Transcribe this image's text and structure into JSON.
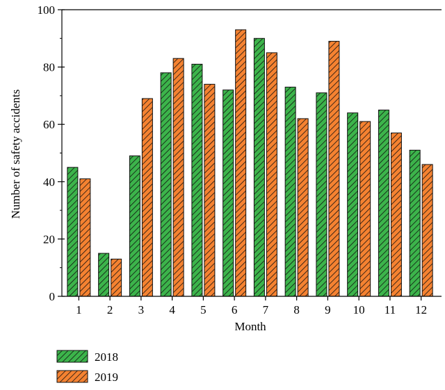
{
  "chart_data": {
    "type": "bar",
    "xlabel": "Month",
    "ylabel": "Number of safety accidents",
    "ylim": [
      0,
      100
    ],
    "yticks": [
      0,
      20,
      40,
      60,
      80,
      100
    ],
    "categories": [
      "1",
      "2",
      "3",
      "4",
      "5",
      "6",
      "7",
      "8",
      "9",
      "10",
      "11",
      "12"
    ],
    "series": [
      {
        "name": "2018",
        "color": "#3cb44b",
        "hatch": "diagonal",
        "values": [
          45,
          15,
          49,
          78,
          81,
          72,
          90,
          73,
          71,
          64,
          65,
          51
        ]
      },
      {
        "name": "2019",
        "color": "#f58231",
        "hatch": "diagonal",
        "values": [
          41,
          13,
          69,
          83,
          74,
          93,
          85,
          62,
          89,
          61,
          57,
          46
        ]
      }
    ],
    "legend_position": "bottom-left",
    "grid": false
  }
}
